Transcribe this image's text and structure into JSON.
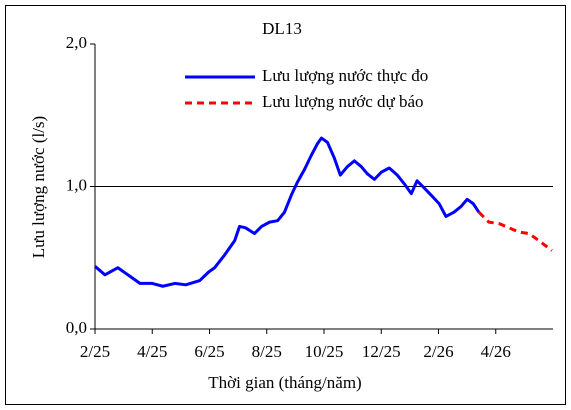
{
  "chart_data": {
    "type": "line",
    "title": "DL13",
    "x_label": "Thời gian  (tháng/năm)",
    "y_label": "Lưu lượng nước (l/s)",
    "xlim": [
      0,
      16
    ],
    "xticks": [
      {
        "value": 0,
        "label": "2/25"
      },
      {
        "value": 2,
        "label": "4/25"
      },
      {
        "value": 4,
        "label": "6/25"
      },
      {
        "value": 6,
        "label": "8/25"
      },
      {
        "value": 8,
        "label": "10/25"
      },
      {
        "value": 10,
        "label": "12/25"
      },
      {
        "value": 12,
        "label": "2/26"
      },
      {
        "value": 14,
        "label": "4/26"
      }
    ],
    "ylim": [
      0,
      2
    ],
    "yticks": [
      {
        "value": 0,
        "label": "0,0"
      },
      {
        "value": 1,
        "label": "1,0"
      },
      {
        "value": 2,
        "label": "2,0"
      }
    ],
    "grid": true,
    "legend": "top",
    "series": [
      {
        "name": "Lưu lượng nước thực đo",
        "color": "#0000ff",
        "line_style": "solid",
        "x": [
          0,
          0.35,
          0.8,
          1.22,
          1.57,
          2.0,
          2.37,
          2.79,
          3.17,
          3.66,
          3.97,
          4.18,
          4.53,
          4.88,
          5.05,
          5.26,
          5.57,
          5.82,
          6.1,
          6.38,
          6.62,
          6.86,
          7.07,
          7.32,
          7.56,
          7.77,
          7.91,
          8.12,
          8.36,
          8.57,
          8.82,
          9.06,
          9.3,
          9.51,
          9.76,
          10.0,
          10.28,
          10.56,
          10.8,
          11.05,
          11.25,
          11.5,
          11.74,
          12.02,
          12.26,
          12.54,
          12.79,
          13.0,
          13.21,
          13.41
        ],
        "values": [
          0.44,
          0.38,
          0.43,
          0.37,
          0.32,
          0.32,
          0.3,
          0.32,
          0.31,
          0.34,
          0.4,
          0.43,
          0.52,
          0.62,
          0.72,
          0.71,
          0.67,
          0.72,
          0.75,
          0.76,
          0.82,
          0.94,
          1.03,
          1.12,
          1.22,
          1.3,
          1.34,
          1.31,
          1.2,
          1.08,
          1.14,
          1.18,
          1.14,
          1.09,
          1.05,
          1.1,
          1.13,
          1.08,
          1.02,
          0.95,
          1.04,
          0.99,
          0.94,
          0.88,
          0.79,
          0.82,
          0.86,
          0.91,
          0.88,
          0.82
        ]
      },
      {
        "name": "Lưu lượng nước dự báo",
        "color": "#ff0000",
        "line_style": "dashed",
        "x": [
          13.41,
          13.76,
          14.11,
          14.46,
          14.81,
          15.16,
          15.51,
          15.96
        ],
        "values": [
          0.82,
          0.75,
          0.74,
          0.71,
          0.68,
          0.67,
          0.62,
          0.55
        ]
      }
    ]
  }
}
